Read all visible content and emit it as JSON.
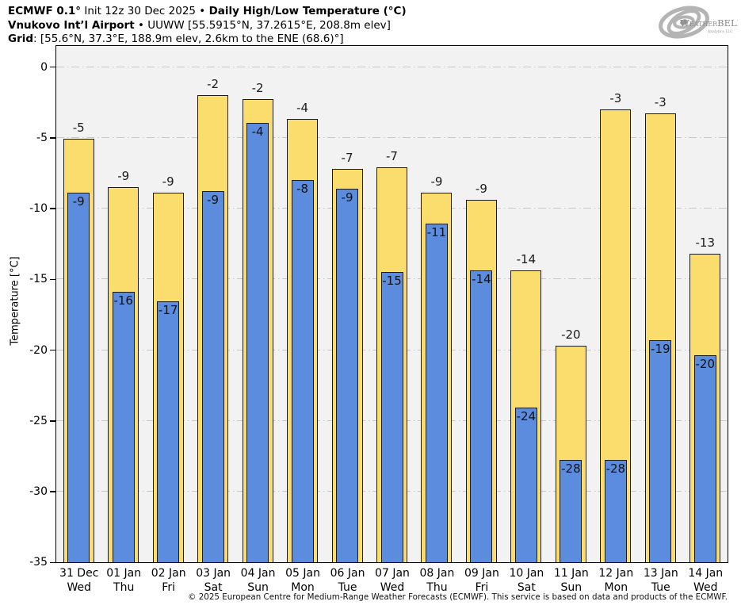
{
  "header": {
    "line1": [
      {
        "text": "ECMWF 0.1°",
        "bold": true
      },
      {
        "text": " Init 12z 30 Dec 2025 • ",
        "bold": false
      },
      {
        "text": "Daily High/Low Temperature (°C)",
        "bold": true
      }
    ],
    "line2": [
      {
        "text": "Vnukovo Int’l Airport",
        "bold": true
      },
      {
        "text": " • UUWW [55.5915°N, 37.2615°E, 208.8m elev]",
        "bold": false
      }
    ],
    "line3": [
      {
        "text": "Grid",
        "bold": true
      },
      {
        "text": ": [55.6°N, 37.3°E, 188.9m elev, 2.6km to the ENE (68.6)°]",
        "bold": false
      }
    ]
  },
  "logo": {
    "name": "WeatherBELL",
    "sub": "Analytics LLC"
  },
  "footer": {
    "text": "© 2025 European Centre for Medium-Range Weather Forecasts (ECMWF). This service is based on data and products of the ECMWF."
  },
  "chart_data": {
    "type": "bar",
    "title": "ECMWF 0.1° Init 12z 30 Dec 2025 • Daily High/Low Temperature (°C)",
    "station": "Vnukovo Int’l Airport • UUWW [55.5915°N, 37.2615°E, 208.8m elev]",
    "grid_point": "[55.6°N, 37.3°E, 188.9m elev, 2.6km to the ENE (68.6)°]",
    "ylabel": "Temperature [°C]",
    "ylim": [
      -35,
      0
    ],
    "yticks": [
      0,
      -5,
      -10,
      -15,
      -20,
      -25,
      -30,
      -35
    ],
    "ytick_labels": [
      "0",
      "-5",
      "-10",
      "-15",
      "-20",
      "-25",
      "-30",
      "-35"
    ],
    "grid_on": true,
    "legend_position": "none",
    "series_names": [
      "Daily High",
      "Daily Low"
    ],
    "colors": {
      "high_bar": "#fbdd6e",
      "low_bar": "#5b8cde",
      "bar_outline": "#1a1a1a",
      "plot_bg": "#f2f2f2",
      "grid_line": "#c8c8c8"
    },
    "days": [
      {
        "date": "31 Dec",
        "weekday": "Wed",
        "high_label": "-5",
        "low_label": "-9",
        "high": -5.1,
        "low": -8.9
      },
      {
        "date": "01 Jan",
        "weekday": "Thu",
        "high_label": "-9",
        "low_label": "-16",
        "high": -8.5,
        "low": -15.9
      },
      {
        "date": "02 Jan",
        "weekday": "Fri",
        "high_label": "-9",
        "low_label": "-17",
        "high": -8.9,
        "low": -16.6
      },
      {
        "date": "03 Jan",
        "weekday": "Sat",
        "high_label": "-2",
        "low_label": "-9",
        "high": -2.0,
        "low": -8.8
      },
      {
        "date": "04 Jan",
        "weekday": "Sun",
        "high_label": "-2",
        "low_label": "-4",
        "high": -2.3,
        "low": -4.0
      },
      {
        "date": "05 Jan",
        "weekday": "Mon",
        "high_label": "-4",
        "low_label": "-8",
        "high": -3.7,
        "low": -8.0
      },
      {
        "date": "06 Jan",
        "weekday": "Tue",
        "high_label": "-7",
        "low_label": "-9",
        "high": -7.2,
        "low": -8.6
      },
      {
        "date": "07 Jan",
        "weekday": "Wed",
        "high_label": "-7",
        "low_label": "-15",
        "high": -7.1,
        "low": -14.5
      },
      {
        "date": "08 Jan",
        "weekday": "Thu",
        "high_label": "-9",
        "low_label": "-11",
        "high": -8.9,
        "low": -11.1
      },
      {
        "date": "09 Jan",
        "weekday": "Fri",
        "high_label": "-9",
        "low_label": "-14",
        "high": -9.4,
        "low": -14.4
      },
      {
        "date": "10 Jan",
        "weekday": "Sat",
        "high_label": "-14",
        "low_label": "-24",
        "high": -14.4,
        "low": -24.1
      },
      {
        "date": "11 Jan",
        "weekday": "Sun",
        "high_label": "-20",
        "low_label": "-28",
        "high": -19.7,
        "low": -27.8
      },
      {
        "date": "12 Jan",
        "weekday": "Mon",
        "high_label": "-3",
        "low_label": "-28",
        "high": -3.0,
        "low": -27.8
      },
      {
        "date": "13 Jan",
        "weekday": "Tue",
        "high_label": "-3",
        "low_label": "-19",
        "high": -3.3,
        "low": -19.3
      },
      {
        "date": "14 Jan",
        "weekday": "Wed",
        "high_label": "-13",
        "low_label": "-20",
        "high": -13.2,
        "low": -20.4
      }
    ]
  }
}
